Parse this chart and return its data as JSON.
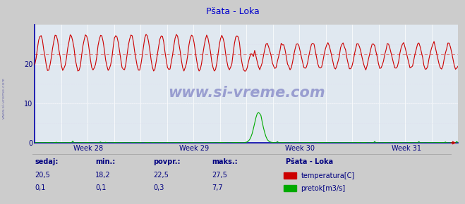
{
  "title": "Pšata - Loka",
  "title_color": "#0000cc",
  "bg_color": "#cccccc",
  "plot_bg_color": "#e0e8f0",
  "grid_major_color": "#ffffff",
  "grid_minor_color": "#ddddee",
  "axis_color": "#0000aa",
  "text_color": "#000080",
  "temp_color": "#cc0000",
  "flow_color": "#00aa00",
  "avg_line_color": "#dd8888",
  "avg_value": 22.5,
  "temp_base": 22.5,
  "temp_amp_before": 4.5,
  "temp_amp_after": 3.2,
  "temp_min_clip": 18.2,
  "temp_max_clip": 27.5,
  "flow_max": 7.7,
  "n_points": 336,
  "ylim": [
    0,
    30
  ],
  "yticks": [
    0,
    10,
    20
  ],
  "watermark": "www.si-vreme.com",
  "weeks": [
    "Week 28",
    "Week 29",
    "Week 30",
    "Week 31"
  ],
  "legend_title": "Pšata - Loka",
  "legend_items": [
    "temperatura[C]",
    "pretok[m3/s]"
  ],
  "legend_colors": [
    "#cc0000",
    "#00aa00"
  ],
  "stat_labels": [
    "sedaj:",
    "min.:",
    "povpr.:",
    "maks.:"
  ],
  "stat_temp": [
    "20,5",
    "18,2",
    "22,5",
    "27,5"
  ],
  "stat_flow": [
    "0,1",
    "0,1",
    "0,3",
    "7,7"
  ]
}
